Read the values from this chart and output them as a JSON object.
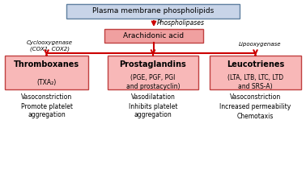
{
  "bg_color": "#ffffff",
  "box_top_color": "#c8d4e8",
  "box_top_edge": "#6080a0",
  "box_mid_color": "#f0a0a0",
  "box_mid_edge": "#c04040",
  "box_bot_color": "#f8b8b8",
  "box_bot_edge": "#c04040",
  "arrow_color": "#cc0000",
  "text_color": "#000000",
  "top_box_text": "Plasma membrane phospholipids",
  "mid_box_text": "Arachidonic acid",
  "phospholipases_label": "Phospholipases",
  "cyclooxygenase_label": "Cyclooxygenase\n(COX1, COX2)",
  "lipooxygenase_label": "Lipooxygenase",
  "boxes": [
    {
      "title": "Thromboxanes",
      "subtitle": "(TXA₂)",
      "effects": [
        "Vasoconstriction",
        "Promote platelet\naggregation"
      ]
    },
    {
      "title": "Prostaglandins",
      "subtitle": "(PGE, PGF, PGI\nand prostacyclin)",
      "effects": [
        "Vasodilatation",
        "Inhibits platelet\naggregation"
      ]
    },
    {
      "title": "Leucotrienes",
      "subtitle": "(LTA, LTB, LTC, LTD\nand SRS-A)",
      "effects": [
        "Vasoconstriction",
        "Increased permeability",
        "Chemotaxis"
      ]
    }
  ]
}
